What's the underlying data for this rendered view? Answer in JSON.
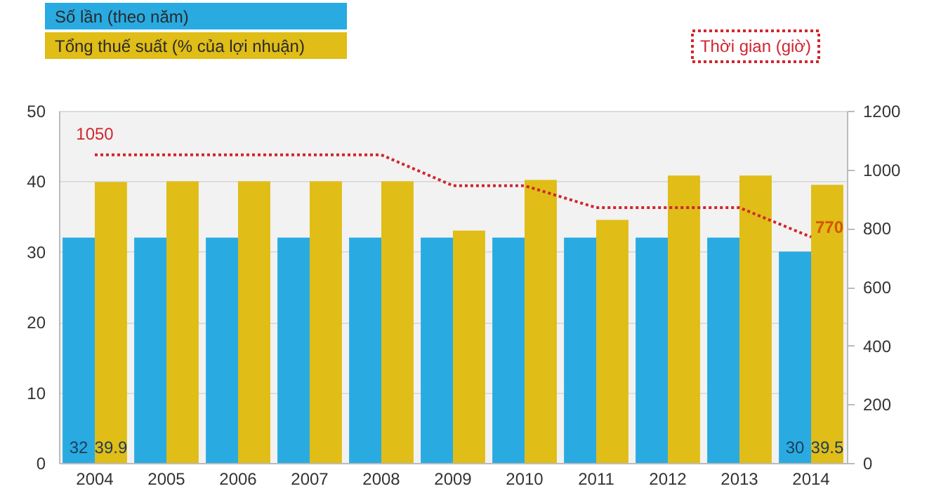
{
  "chart_data": {
    "type": "bar",
    "categories": [
      "2004",
      "2005",
      "2006",
      "2007",
      "2008",
      "2009",
      "2010",
      "2011",
      "2012",
      "2013",
      "2014"
    ],
    "series": [
      {
        "name": "Số lần (theo năm)",
        "color": "#29abe2",
        "values": [
          32,
          32,
          32,
          32,
          32,
          32,
          32,
          32,
          32,
          32,
          30
        ],
        "value_labels": [
          "32",
          null,
          null,
          null,
          null,
          null,
          null,
          null,
          null,
          null,
          "30"
        ]
      },
      {
        "name": "Tổng thuế suất (% của lợi nhuận)",
        "color": "#e0bd17",
        "values": [
          39.9,
          40,
          40,
          40,
          40,
          33,
          40.2,
          34.5,
          40.8,
          40.8,
          39.5
        ],
        "value_labels": [
          "39.9",
          null,
          null,
          null,
          null,
          null,
          null,
          null,
          null,
          null,
          "39.5"
        ]
      },
      {
        "name": "Thời gian (giờ)",
        "color": "#d0262e",
        "type": "line",
        "axis": "y2",
        "line_style": "dotted",
        "values": [
          1050,
          1050,
          1050,
          1050,
          1050,
          945,
          945,
          870,
          870,
          870,
          770
        ],
        "value_labels": [
          "1050",
          null,
          null,
          null,
          null,
          null,
          null,
          null,
          null,
          null,
          "770"
        ]
      }
    ],
    "ylim": [
      0,
      50
    ],
    "yticks": [
      0,
      10,
      20,
      30,
      40,
      50
    ],
    "y2lim": [
      0,
      1200
    ],
    "y2ticks": [
      0,
      200,
      400,
      600,
      800,
      1000,
      1200
    ],
    "grid": "y",
    "legend": "top left"
  }
}
